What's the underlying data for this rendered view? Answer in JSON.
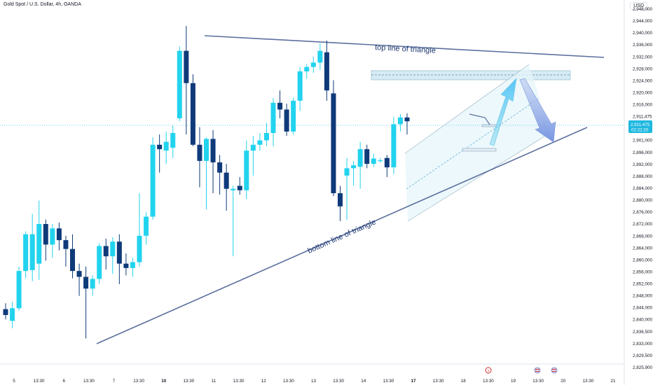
{
  "header": {
    "symbol_title": "Gold Spot / U.S. Dollar, 4h, OANDA",
    "currency": "USD"
  },
  "price_tag": {
    "price": "2,911.475",
    "countdown": "02:22:20"
  },
  "colors": {
    "bull": "#22d3ee",
    "bear": "#0f3a7a",
    "trendline": "#5b6f9e",
    "price_line": "#4fc3f7",
    "zone": "#cfe8f3"
  },
  "chart_data": {
    "type": "candlestick",
    "timeframe": "4h",
    "y_ticks": [
      "2,948,000",
      "2,944,000",
      "2,940,000",
      "2,936,000",
      "2,932,000",
      "2,928,000",
      "2,924,000",
      "2,920,000",
      "2,916,000",
      "2,911,475",
      "2,906,000",
      "2,901,000",
      "2,896,000",
      "2,892,000",
      "2,888,000",
      "2,884,000",
      "2,880,000",
      "2,876,000",
      "2,872,000",
      "2,868,000",
      "2,864,000",
      "2,860,000",
      "2,856,000",
      "2,852,000",
      "2,848,000",
      "2,844,000",
      "2,840,000",
      "2,836,500",
      "2,833,000",
      "2,829,500",
      "2,825,900"
    ],
    "x_ticks": [
      {
        "label": "5",
        "bold": false
      },
      {
        "label": "13:30",
        "bold": false
      },
      {
        "label": "6",
        "bold": false
      },
      {
        "label": "13:30",
        "bold": false
      },
      {
        "label": "7",
        "bold": false
      },
      {
        "label": "13:30",
        "bold": false
      },
      {
        "label": "10",
        "bold": true
      },
      {
        "label": "13:30",
        "bold": false
      },
      {
        "label": "11",
        "bold": false
      },
      {
        "label": "13:30",
        "bold": false
      },
      {
        "label": "12",
        "bold": false
      },
      {
        "label": "13:30",
        "bold": false
      },
      {
        "label": "13",
        "bold": false
      },
      {
        "label": "13:30",
        "bold": false
      },
      {
        "label": "14",
        "bold": false
      },
      {
        "label": "13:30",
        "bold": false
      },
      {
        "label": "17",
        "bold": true
      },
      {
        "label": "13:30",
        "bold": false
      },
      {
        "label": "18",
        "bold": false
      },
      {
        "label": "13:30",
        "bold": false
      },
      {
        "label": "19",
        "bold": false
      },
      {
        "label": "13:30",
        "bold": false
      },
      {
        "label": "20",
        "bold": false
      },
      {
        "label": "13:30",
        "bold": false
      },
      {
        "label": "21",
        "bold": false
      }
    ],
    "candles": [
      {
        "o": 2846.5,
        "h": 2848.5,
        "l": 2843.0,
        "c": 2844.5
      },
      {
        "o": 2842.5,
        "h": 2849.0,
        "l": 2840.0,
        "c": 2846.8
      },
      {
        "o": 2846.8,
        "h": 2861.0,
        "l": 2846.0,
        "c": 2859.5
      },
      {
        "o": 2859.5,
        "h": 2873.0,
        "l": 2857.0,
        "c": 2872.0
      },
      {
        "o": 2859.8,
        "h": 2879.0,
        "l": 2856.0,
        "c": 2872.0
      },
      {
        "o": 2862.0,
        "h": 2883.5,
        "l": 2856.5,
        "c": 2875.5
      },
      {
        "o": 2875.5,
        "h": 2877.0,
        "l": 2863.0,
        "c": 2868.5
      },
      {
        "o": 2868.5,
        "h": 2875.5,
        "l": 2864.0,
        "c": 2874.0
      },
      {
        "o": 2874.0,
        "h": 2876.0,
        "l": 2866.5,
        "c": 2870.0
      },
      {
        "o": 2870.0,
        "h": 2871.5,
        "l": 2861.0,
        "c": 2867.0
      },
      {
        "o": 2867.0,
        "h": 2872.0,
        "l": 2857.0,
        "c": 2859.5
      },
      {
        "o": 2859.5,
        "h": 2862.0,
        "l": 2851.0,
        "c": 2857.5
      },
      {
        "o": 2857.5,
        "h": 2861.0,
        "l": 2836.5,
        "c": 2853.5
      },
      {
        "o": 2853.5,
        "h": 2858.0,
        "l": 2851.0,
        "c": 2856.8
      },
      {
        "o": 2856.8,
        "h": 2869.0,
        "l": 2855.0,
        "c": 2868.0
      },
      {
        "o": 2868.0,
        "h": 2870.5,
        "l": 2860.0,
        "c": 2864.5
      },
      {
        "o": 2864.5,
        "h": 2871.0,
        "l": 2858.5,
        "c": 2869.5
      },
      {
        "o": 2869.5,
        "h": 2872.0,
        "l": 2855.0,
        "c": 2862.0
      },
      {
        "o": 2862.0,
        "h": 2865.5,
        "l": 2858.0,
        "c": 2860.5
      },
      {
        "o": 2860.5,
        "h": 2864.0,
        "l": 2857.5,
        "c": 2862.5
      },
      {
        "o": 2862.5,
        "h": 2886.0,
        "l": 2861.0,
        "c": 2871.5
      },
      {
        "o": 2871.5,
        "h": 2879.5,
        "l": 2868.5,
        "c": 2878.0
      },
      {
        "o": 2878.0,
        "h": 2905.0,
        "l": 2877.0,
        "c": 2902.5
      },
      {
        "o": 2902.5,
        "h": 2906.0,
        "l": 2893.0,
        "c": 2901.0
      },
      {
        "o": 2900.5,
        "h": 2907.0,
        "l": 2896.0,
        "c": 2903.5
      },
      {
        "o": 2901.5,
        "h": 2909.0,
        "l": 2898.0,
        "c": 2906.5
      },
      {
        "o": 2911.5,
        "h": 2936.0,
        "l": 2910.5,
        "c": 2934.5
      },
      {
        "o": 2934.5,
        "h": 2943.0,
        "l": 2906.0,
        "c": 2923.5
      },
      {
        "o": 2923.5,
        "h": 2926.5,
        "l": 2902.0,
        "c": 2902.5
      },
      {
        "o": 2902.5,
        "h": 2908.5,
        "l": 2888.0,
        "c": 2897.0
      },
      {
        "o": 2897.0,
        "h": 2905.0,
        "l": 2880.5,
        "c": 2904.5
      },
      {
        "o": 2904.5,
        "h": 2907.5,
        "l": 2886.0,
        "c": 2896.5
      },
      {
        "o": 2896.5,
        "h": 2899.0,
        "l": 2885.5,
        "c": 2893.0
      },
      {
        "o": 2893.0,
        "h": 2896.0,
        "l": 2880.0,
        "c": 2887.5
      },
      {
        "o": 2887.0,
        "h": 2888.5,
        "l": 2864.5,
        "c": 2887.5
      },
      {
        "o": 2888.5,
        "h": 2891.5,
        "l": 2885.5,
        "c": 2887.0
      },
      {
        "o": 2887.0,
        "h": 2904.0,
        "l": 2884.0,
        "c": 2900.5
      },
      {
        "o": 2900.5,
        "h": 2905.5,
        "l": 2892.0,
        "c": 2902.5
      },
      {
        "o": 2902.5,
        "h": 2906.5,
        "l": 2900.5,
        "c": 2904.0
      },
      {
        "o": 2904.0,
        "h": 2910.0,
        "l": 2902.0,
        "c": 2906.5
      },
      {
        "o": 2906.5,
        "h": 2918.5,
        "l": 2902.0,
        "c": 2916.8
      },
      {
        "o": 2916.8,
        "h": 2921.0,
        "l": 2911.5,
        "c": 2914.5
      },
      {
        "o": 2914.5,
        "h": 2916.5,
        "l": 2905.5,
        "c": 2907.0
      },
      {
        "o": 2907.0,
        "h": 2918.5,
        "l": 2906.0,
        "c": 2917.5
      },
      {
        "o": 2917.5,
        "h": 2929.0,
        "l": 2914.0,
        "c": 2927.5
      },
      {
        "o": 2927.5,
        "h": 2930.0,
        "l": 2925.0,
        "c": 2929.0
      },
      {
        "o": 2929.0,
        "h": 2932.5,
        "l": 2927.0,
        "c": 2930.5
      },
      {
        "o": 2930.5,
        "h": 2937.0,
        "l": 2928.0,
        "c": 2934.5
      },
      {
        "o": 2934.0,
        "h": 2938.0,
        "l": 2917.5,
        "c": 2921.0
      },
      {
        "o": 2920.0,
        "h": 2924.5,
        "l": 2885.0,
        "c": 2886.0
      },
      {
        "o": 2886.0,
        "h": 2888.5,
        "l": 2876.5,
        "c": 2881.5
      },
      {
        "o": 2892.0,
        "h": 2898.0,
        "l": 2877.0,
        "c": 2894.5
      },
      {
        "o": 2894.5,
        "h": 2897.0,
        "l": 2888.5,
        "c": 2895.5
      },
      {
        "o": 2895.0,
        "h": 2903.5,
        "l": 2887.5,
        "c": 2901.0
      },
      {
        "o": 2901.0,
        "h": 2902.5,
        "l": 2894.5,
        "c": 2896.0
      },
      {
        "o": 2896.0,
        "h": 2899.5,
        "l": 2895.0,
        "c": 2897.8
      },
      {
        "o": 2897.2,
        "h": 2898.0,
        "l": 2896.5,
        "c": 2897.2
      },
      {
        "o": 2898.0,
        "h": 2899.0,
        "l": 2891.5,
        "c": 2894.8
      },
      {
        "o": 2894.8,
        "h": 2912.0,
        "l": 2892.5,
        "c": 2909.5
      },
      {
        "o": 2909.5,
        "h": 2913.0,
        "l": 2907.0,
        "c": 2911.8
      },
      {
        "o": 2911.8,
        "h": 2913.2,
        "l": 2906.0,
        "c": 2910.5
      }
    ]
  },
  "annotations": {
    "top_line_label": "top line of triangle",
    "bottom_line_label": "bottom line of triangle"
  }
}
